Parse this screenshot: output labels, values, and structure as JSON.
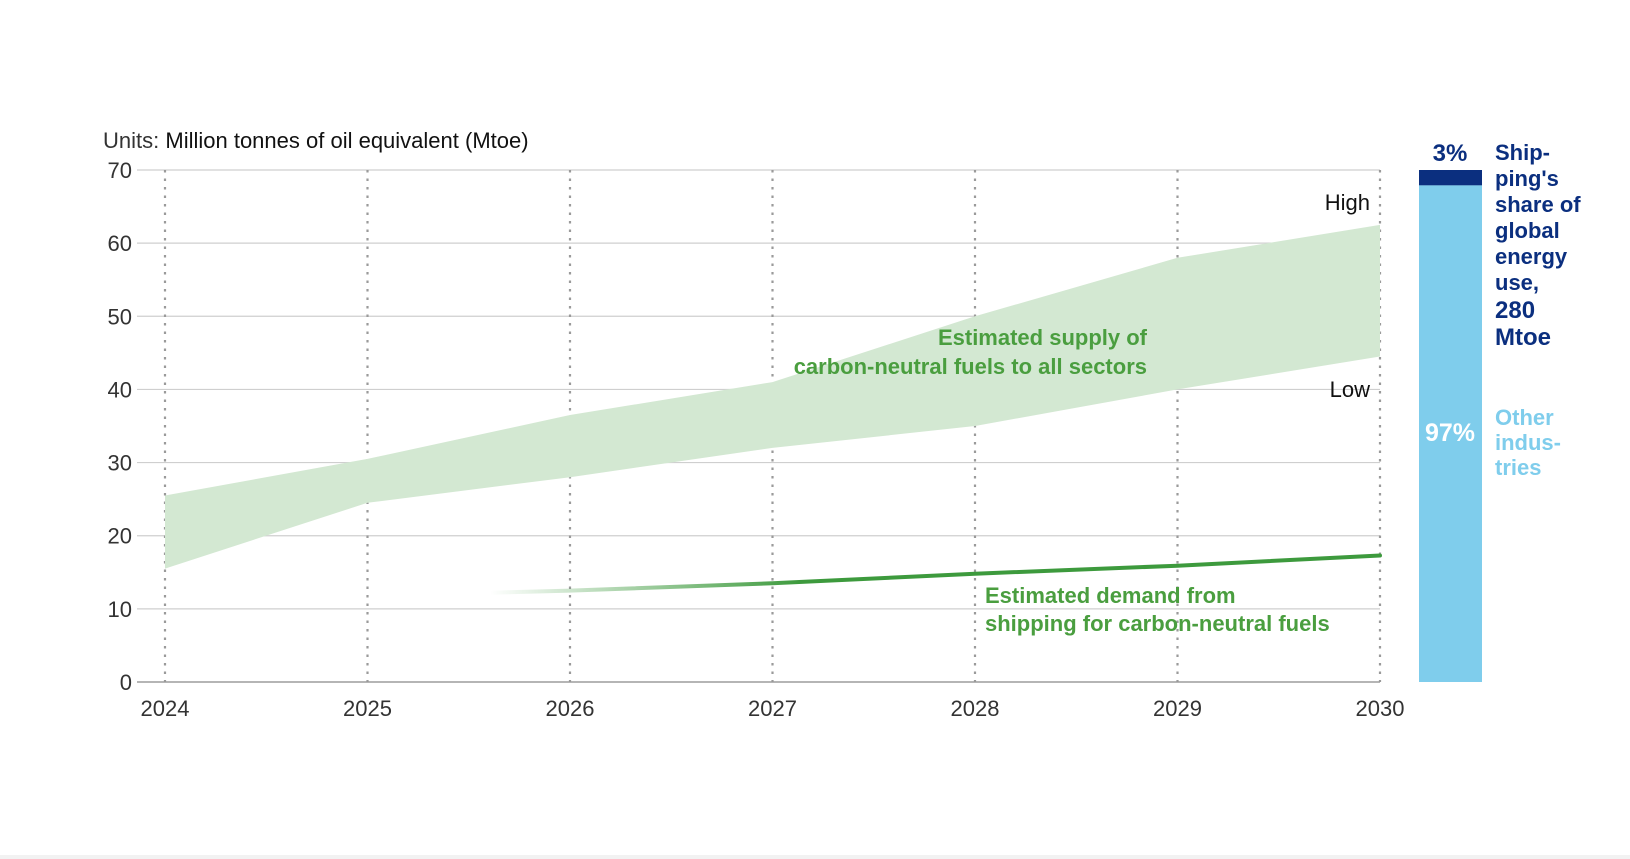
{
  "chart_data": {
    "type": "area",
    "units_prefix": "Units:",
    "units_text": "Million tonnes of oil equivalent (Mtoe)",
    "x": [
      2024,
      2025,
      2026,
      2027,
      2028,
      2029,
      2030
    ],
    "x_ticks": [
      "2024",
      "2025",
      "2026",
      "2027",
      "2028",
      "2029",
      "2030"
    ],
    "y_ticks": [
      "0",
      "10",
      "20",
      "30",
      "40",
      "50",
      "60",
      "70"
    ],
    "ylim": [
      0,
      70
    ],
    "grid": "horizontal solid, vertical dotted",
    "series": [
      {
        "name": "Estimated supply of carbon-neutral fuels to all sectors",
        "kind": "band",
        "color": "#d3e8d2",
        "high": [
          25.5,
          30.5,
          36.5,
          41,
          50,
          58,
          62.5
        ],
        "low": [
          15.5,
          24.5,
          28,
          32,
          35,
          40,
          44.5
        ]
      },
      {
        "name": "Estimated demand from shipping for carbon-neutral fuels",
        "kind": "line",
        "color": "#3d9a3d",
        "x": [
          2025.6,
          2026,
          2027,
          2028,
          2029,
          2030
        ],
        "values": [
          12.2,
          12.5,
          13.5,
          14.8,
          15.9,
          17.3
        ]
      }
    ],
    "annotations": {
      "high": "High",
      "low": "Low",
      "supply_line1": "Estimated supply of",
      "supply_line2": "carbon-neutral fuels to all sectors",
      "demand_line1": "Estimated demand from",
      "demand_line2": "shipping for carbon-neutral fuels"
    },
    "share_bar": {
      "segments": [
        {
          "label": "3%",
          "value": 3,
          "color": "#0b2f7f"
        },
        {
          "label": "97%",
          "value": 97,
          "color": "#7fcdec"
        }
      ],
      "shipping_label_lines": [
        "Ship-",
        "ping's",
        "share of",
        "global",
        "energy",
        "use,"
      ],
      "shipping_total_lines": [
        "280",
        "Mtoe"
      ],
      "other_label_lines": [
        "Other",
        "indus-",
        "tries"
      ]
    }
  },
  "colors": {
    "axis_text": "#333333",
    "grid": "#c8c8c8",
    "band": "#d3e8d2",
    "demand_line": "#3d9a3d",
    "annotation_green": "#4a9e3f",
    "navy": "#0b2f7f",
    "light_blue": "#7fcdec"
  }
}
